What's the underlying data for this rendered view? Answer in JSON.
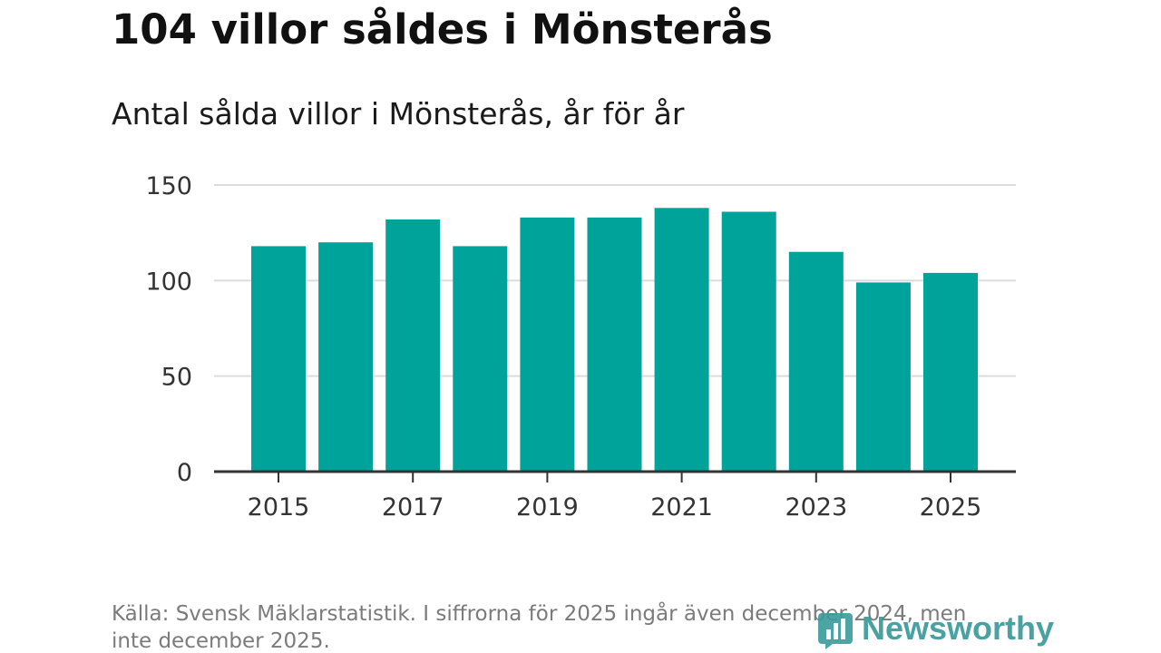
{
  "colors": {
    "bar": "#00a39a",
    "grid": "#dcdcdc",
    "axis": "#333333",
    "logo": "#3a9a9a"
  },
  "brand": {
    "name": "Newsworthy",
    "icon": "bar-chart-logo-icon"
  },
  "chart_data": {
    "type": "bar",
    "title": "104 villor såldes i Mönsterås",
    "subtitle": "Antal sålda villor i Mönsterås, år för år",
    "xlabel": "",
    "ylabel": "",
    "categories": [
      "2015",
      "2016",
      "2017",
      "2018",
      "2019",
      "2020",
      "2021",
      "2022",
      "2023",
      "2024",
      "2025"
    ],
    "values": [
      118,
      120,
      132,
      118,
      133,
      133,
      138,
      136,
      115,
      99,
      104
    ],
    "ylim": [
      0,
      150
    ],
    "yticks": [
      0,
      50,
      100,
      150
    ],
    "ytick_labels": [
      "0",
      "50",
      "100",
      "150"
    ],
    "xtick_labels": [
      "2015",
      "2017",
      "2019",
      "2021",
      "2023",
      "2025"
    ],
    "grid": true,
    "legend": "none"
  },
  "source": "Källa: Svensk Mäklarstatistik. I siffrorna för 2025 ingår även december 2024, men inte december 2025."
}
